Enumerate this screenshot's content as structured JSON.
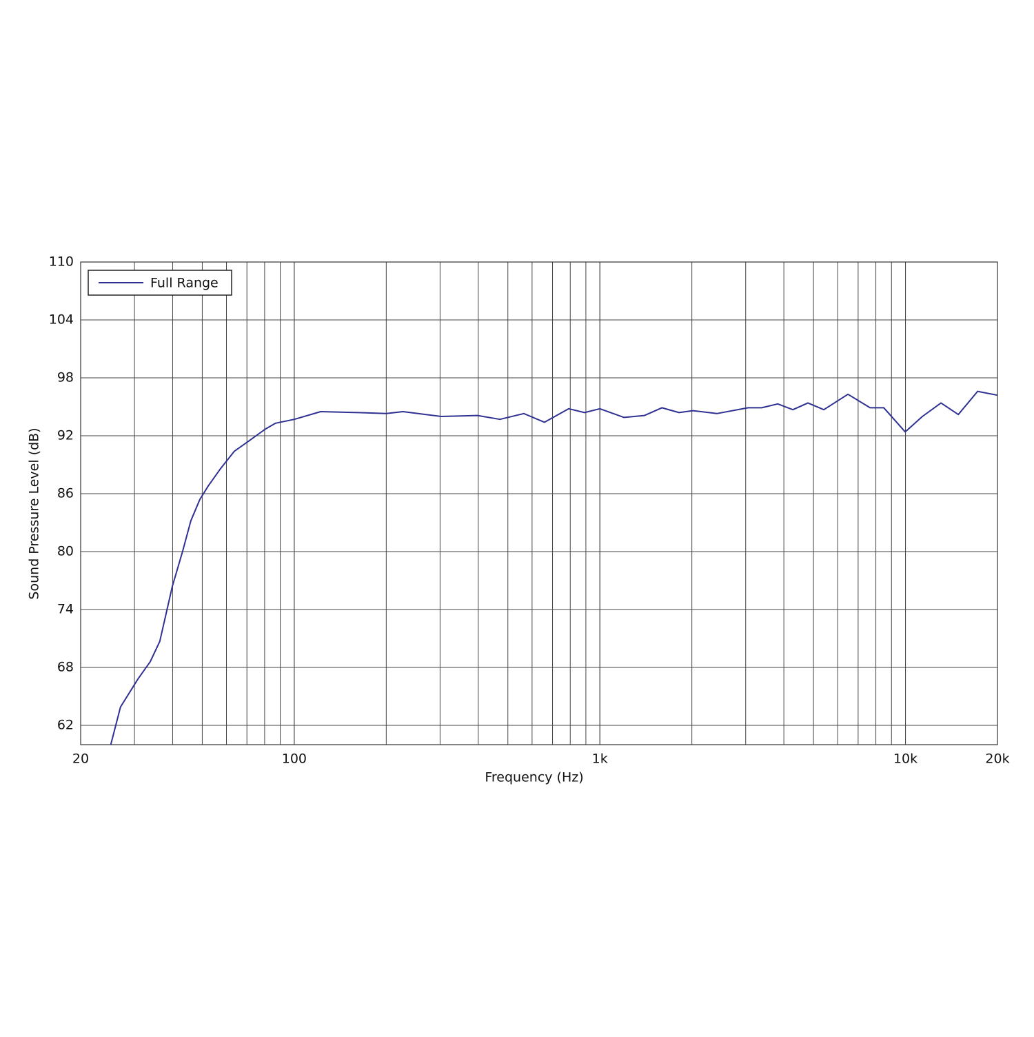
{
  "chart_data": {
    "type": "line",
    "x_label": "Frequency (Hz)",
    "y_label": "Sound Pressure Level (dB)",
    "x": [
      25.1,
      27,
      30.8,
      33.8,
      36.3,
      39.9,
      43.1,
      45.9,
      49.1,
      52.3,
      57.4,
      63.7,
      70.6,
      80.5,
      86.9,
      100,
      122,
      162,
      200,
      227,
      303,
      398,
      471,
      564,
      659,
      791,
      891,
      1000,
      1200,
      1400,
      1596,
      1816,
      2014,
      2416,
      3054,
      3387,
      3818,
      4280,
      4797,
      5406,
      6484,
      7658,
      8493,
      9980,
      11360,
      13070,
      14890,
      17220,
      20000
    ],
    "series": [
      {
        "name": "Full Range",
        "color": "#2e3192",
        "values": [
          60.0,
          63.9,
          66.8,
          68.6,
          70.7,
          76.4,
          80.0,
          83.2,
          85.4,
          86.8,
          88.6,
          90.4,
          91.4,
          92.7,
          93.3,
          93.7,
          94.5,
          94.4,
          94.3,
          94.5,
          94.0,
          94.1,
          93.7,
          94.3,
          93.4,
          94.8,
          94.4,
          94.8,
          93.9,
          94.1,
          94.9,
          94.4,
          94.6,
          94.3,
          94.9,
          94.9,
          95.3,
          94.7,
          95.4,
          94.7,
          96.3,
          94.9,
          94.9,
          92.4,
          94.0,
          95.4,
          94.2,
          96.6,
          96.2
        ]
      }
    ],
    "xlim": [
      20,
      20000
    ],
    "xscale": "log",
    "xticks": [
      20,
      100,
      {
        "value": 1000,
        "label": "1k"
      },
      {
        "value": 10000,
        "label": "10k"
      },
      {
        "value": 20000,
        "label": "20k"
      }
    ],
    "ylim": [
      60,
      110
    ],
    "yticks": [
      62,
      68,
      74,
      80,
      86,
      92,
      98,
      104,
      110
    ],
    "grid": true,
    "minor_grid": true,
    "legend": "upper-left"
  }
}
